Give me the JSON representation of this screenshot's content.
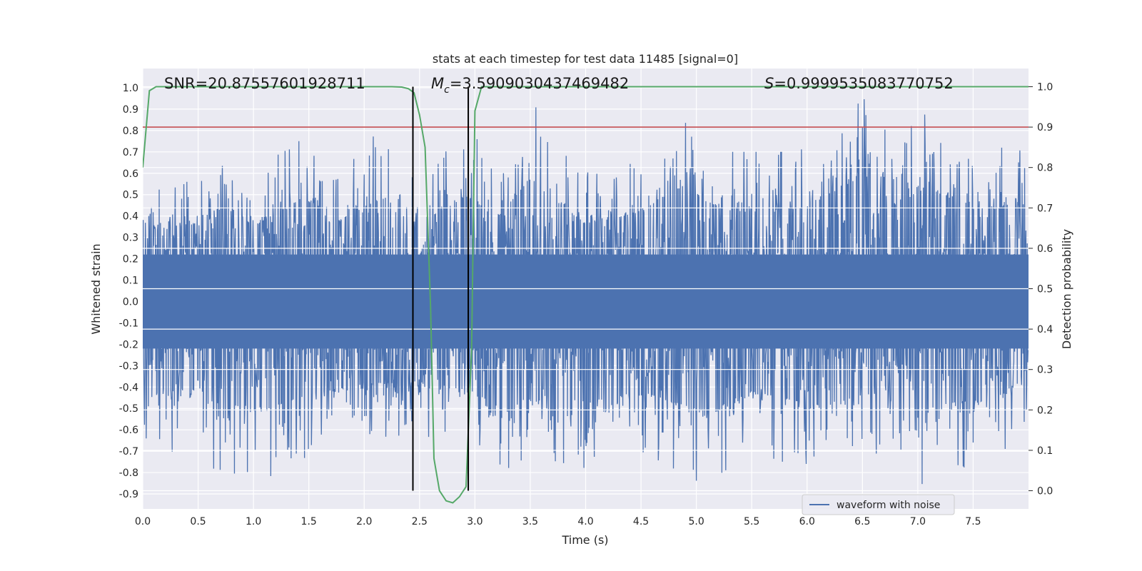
{
  "chart_data": {
    "type": "line",
    "title": "stats at each timestep for test data 11485 [signal=0]",
    "xlabel": "Time (s)",
    "ylabel": "Whitened strain",
    "y2label": "Detection probability",
    "xlim": [
      0.0,
      8.0
    ],
    "ylim": [
      -0.97,
      1.09
    ],
    "y2lim": [
      -0.045,
      1.045
    ],
    "x_ticks": [
      "0.0",
      "0.5",
      "1.0",
      "1.5",
      "2.0",
      "2.5",
      "3.0",
      "3.5",
      "4.0",
      "4.5",
      "5.0",
      "5.5",
      "6.0",
      "6.5",
      "7.0",
      "7.5"
    ],
    "y_ticks": [
      "1.0",
      "0.9",
      "0.8",
      "0.7",
      "0.6",
      "0.5",
      "0.4",
      "0.3",
      "0.2",
      "0.1",
      "0.0",
      "-0.1",
      "-0.2",
      "-0.3",
      "-0.4",
      "-0.5",
      "-0.6",
      "-0.7",
      "-0.8",
      "-0.9"
    ],
    "y2_ticks": [
      "1.0",
      "0.9",
      "0.8",
      "0.7",
      "0.6",
      "0.5",
      "0.4",
      "0.3",
      "0.2",
      "0.1",
      "0.0"
    ],
    "grid": true,
    "legend": {
      "position": "lower-right",
      "entries": [
        "waveform with noise"
      ]
    },
    "annotations": {
      "snr": "SNR=20.87557601928711",
      "mc_symbol": "M",
      "mc_sub": "c",
      "mc_value": "=3.5909030437469482",
      "s_symbol": "S",
      "s_value": "=0.9999535083770752"
    },
    "threshold_line": {
      "axis": "y2",
      "value": 0.9,
      "color": "#c44e52"
    },
    "vertical_lines": [
      2.44,
      2.94
    ],
    "series": [
      {
        "name": "waveform with noise",
        "axis": "y",
        "color": "#4c72b0",
        "sample_rate": 256,
        "duration": 8.0,
        "envelope_pos": [
          [
            0.0,
            0.47
          ],
          [
            0.2,
            0.58
          ],
          [
            0.4,
            0.6
          ],
          [
            0.6,
            0.59
          ],
          [
            0.75,
            0.73
          ],
          [
            1.0,
            0.59
          ],
          [
            1.48,
            0.8
          ],
          [
            1.7,
            0.6
          ],
          [
            2.1,
            0.78
          ],
          [
            2.5,
            0.6
          ],
          [
            2.92,
            0.82
          ],
          [
            3.2,
            0.65
          ],
          [
            3.49,
            0.95
          ],
          [
            4.0,
            0.6
          ],
          [
            4.5,
            0.7
          ],
          [
            4.82,
            0.88
          ],
          [
            5.3,
            0.7
          ],
          [
            5.8,
            0.7
          ],
          [
            6.0,
            0.74
          ],
          [
            6.52,
            0.99
          ],
          [
            6.8,
            0.75
          ],
          [
            7.08,
            0.89
          ],
          [
            7.5,
            0.72
          ],
          [
            8.0,
            0.72
          ]
        ],
        "envelope_neg": [
          [
            0.0,
            -0.65
          ],
          [
            0.3,
            -0.76
          ],
          [
            0.5,
            -0.66
          ],
          [
            0.65,
            -0.79
          ],
          [
            1.13,
            -0.83
          ],
          [
            1.5,
            -0.72
          ],
          [
            2.0,
            -0.64
          ],
          [
            2.5,
            -0.62
          ],
          [
            3.0,
            -0.7
          ],
          [
            3.3,
            -0.86
          ],
          [
            3.5,
            -0.72
          ],
          [
            4.0,
            -0.78
          ],
          [
            4.5,
            -0.7
          ],
          [
            5.08,
            -0.86
          ],
          [
            5.5,
            -0.7
          ],
          [
            6.12,
            -0.81
          ],
          [
            6.6,
            -0.7
          ],
          [
            6.98,
            -0.87
          ],
          [
            7.3,
            -0.78
          ],
          [
            7.6,
            -0.77
          ],
          [
            8.0,
            -0.6
          ]
        ]
      },
      {
        "name": "",
        "axis": "y2",
        "color": "#55a868",
        "x": [
          0.0,
          0.06,
          0.12,
          0.18,
          0.5,
          1.0,
          1.5,
          2.0,
          2.25,
          2.34,
          2.4,
          2.45,
          2.5,
          2.55,
          2.6,
          2.63,
          2.68,
          2.74,
          2.8,
          2.86,
          2.92,
          2.97,
          3.0,
          3.06,
          3.12,
          3.5,
          4.0,
          5.0,
          6.0,
          7.0,
          8.0
        ],
        "values": [
          0.8,
          0.99,
          1.0,
          1.0,
          1.0,
          1.0,
          1.0,
          1.0,
          1.0,
          0.999,
          0.995,
          0.985,
          0.93,
          0.85,
          0.45,
          0.08,
          0.0,
          -0.025,
          -0.03,
          -0.015,
          0.01,
          0.35,
          0.94,
          1.0,
          1.0,
          1.0,
          1.0,
          1.0,
          1.0,
          1.0,
          1.0
        ]
      }
    ]
  }
}
